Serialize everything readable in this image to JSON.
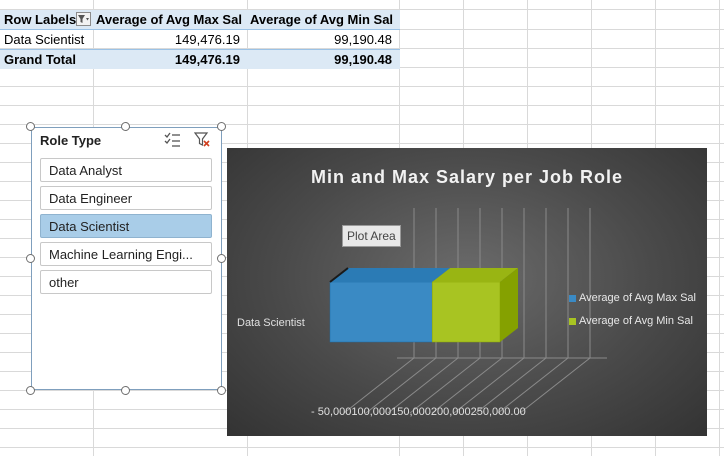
{
  "pivot": {
    "headers": [
      "Row Labels",
      "Average of Avg Max Sal",
      "Average of Avg Min Sal"
    ],
    "rows": [
      {
        "label": "Data Scientist",
        "max": "149,476.19",
        "min": "99,190.48"
      }
    ],
    "total": {
      "label": "Grand Total",
      "max": "149,476.19",
      "min": "99,190.48"
    }
  },
  "slicer": {
    "title": "Role Type",
    "items": [
      "Data Analyst",
      "Data Engineer",
      "Data Scientist",
      "Machine Learning Engi...",
      "other"
    ],
    "selected_index": 2,
    "icons": [
      "multi-select-icon",
      "clear-filter-icon"
    ]
  },
  "chart": {
    "title": "Min and Max Salary per Job Role",
    "tooltip": "Plot Area",
    "axis_tick_text": "- 50,000100,000150,000200,000250,000.00",
    "colors": {
      "max": "#3a8ac4",
      "min": "#a8c422"
    }
  },
  "chart_data": {
    "type": "bar",
    "orientation": "horizontal",
    "stacked": true,
    "three_d": true,
    "title": "Min and Max Salary per Job Role",
    "categories": [
      "Data Scientist"
    ],
    "series": [
      {
        "name": "Average of Avg Max Sal",
        "values": [
          149476.19
        ]
      },
      {
        "name": "Average of Avg Min Sal",
        "values": [
          99190.48
        ]
      }
    ],
    "xlim": [
      0,
      250000
    ],
    "legend": "right",
    "grid": true
  }
}
